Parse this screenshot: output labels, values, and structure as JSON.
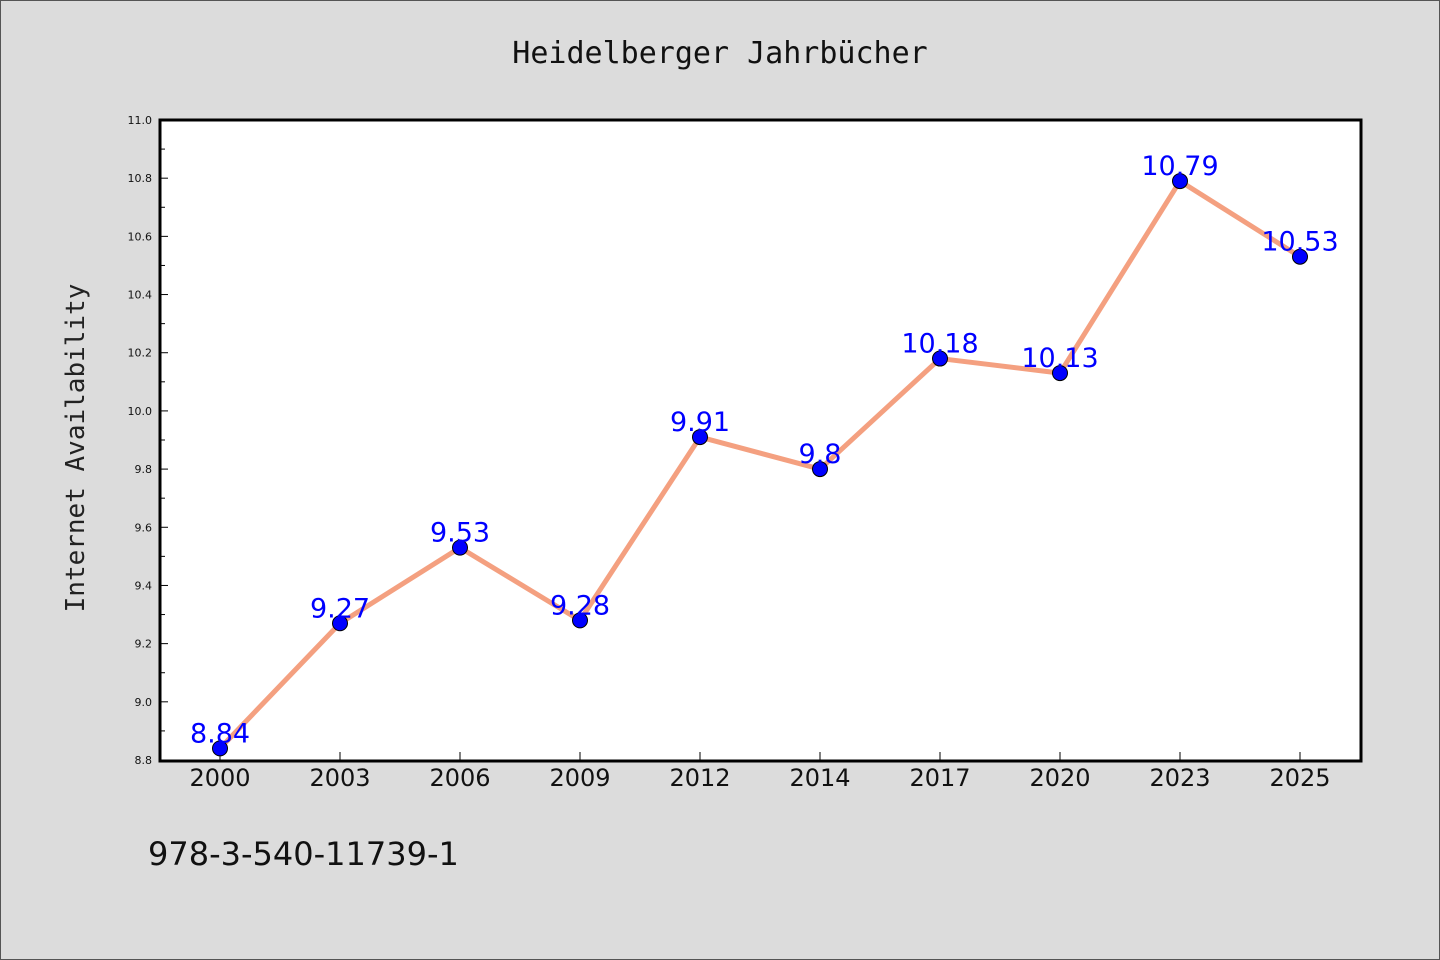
{
  "chart_data": {
    "type": "line",
    "title": "Heidelberger Jahrbücher",
    "xlabel": "",
    "ylabel": "Internet Availability",
    "categories": [
      "2000",
      "2003",
      "2006",
      "2009",
      "2012",
      "2014",
      "2017",
      "2020",
      "2023",
      "2025"
    ],
    "series": [
      {
        "values": [
          8.84,
          9.27,
          9.53,
          9.28,
          9.91,
          9.8,
          10.18,
          10.13,
          10.79,
          10.53
        ],
        "data_labels": [
          "8.84",
          "9.27",
          "9.53",
          "9.28",
          "9.91",
          "9.8",
          "10.18",
          "10.13",
          "10.79",
          "10.53"
        ],
        "line_color": "#f4a080",
        "marker_color": "#0000ff"
      }
    ],
    "ylim": [
      8.8,
      11.0
    ],
    "yticks": [
      "8.8",
      "9.0",
      "9.2",
      "9.4",
      "9.6",
      "9.8",
      "10.0",
      "10.2",
      "10.4",
      "10.6",
      "10.8",
      "11.0"
    ],
    "grid": false,
    "legend": "none"
  },
  "footnote": "978-3-540-11739-1",
  "colors": {
    "background": "#dcdcdc",
    "plot_background": "#ffffff",
    "line": "#f4a080",
    "marker": "#0000ff",
    "data_label": "#0000ff"
  }
}
